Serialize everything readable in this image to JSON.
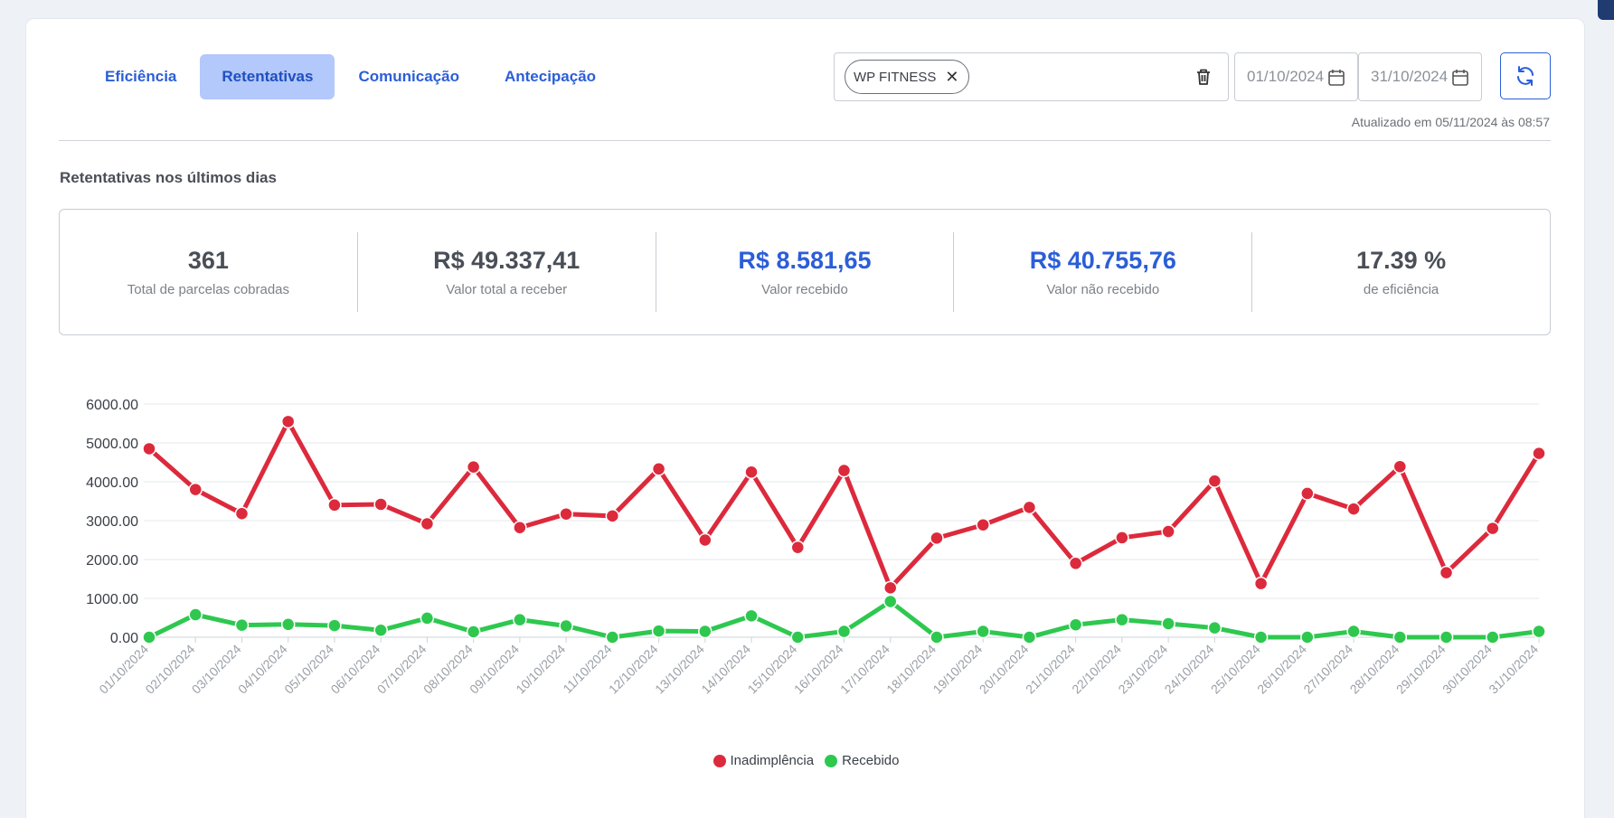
{
  "tabs": [
    {
      "label": "Eficiência",
      "active": false
    },
    {
      "label": "Retentativas",
      "active": true
    },
    {
      "label": "Comunicação",
      "active": false
    },
    {
      "label": "Antecipação",
      "active": false
    }
  ],
  "filter": {
    "chip_label": "WP FITNESS"
  },
  "dates": {
    "start": "01/10/2024",
    "end": "31/10/2024"
  },
  "updated_text": "Atualizado em 05/11/2024 às 08:57",
  "section_title": "Retentativas nos últimos dias",
  "stats": [
    {
      "value": "361",
      "label": "Total de parcelas cobradas",
      "highlight": false
    },
    {
      "value": "R$ 49.337,41",
      "label": "Valor total a receber",
      "highlight": false
    },
    {
      "value": "R$ 8.581,65",
      "label": "Valor recebido",
      "highlight": true
    },
    {
      "value": "R$ 40.755,76",
      "label": "Valor não recebido",
      "highlight": true
    },
    {
      "value": "17.39 %",
      "label": "de eficiência",
      "highlight": false
    }
  ],
  "colors": {
    "accent": "#2b5ed8",
    "series_red": "#dc2a3c",
    "series_green": "#2ec84f"
  },
  "chart_data": {
    "type": "line",
    "x": [
      "01/10/2024",
      "02/10/2024",
      "03/10/2024",
      "04/10/2024",
      "05/10/2024",
      "06/10/2024",
      "07/10/2024",
      "08/10/2024",
      "09/10/2024",
      "10/10/2024",
      "11/10/2024",
      "12/10/2024",
      "13/10/2024",
      "14/10/2024",
      "15/10/2024",
      "16/10/2024",
      "17/10/2024",
      "18/10/2024",
      "19/10/2024",
      "20/10/2024",
      "21/10/2024",
      "22/10/2024",
      "23/10/2024",
      "24/10/2024",
      "25/10/2024",
      "26/10/2024",
      "27/10/2024",
      "28/10/2024",
      "29/10/2024",
      "30/10/2024",
      "31/10/2024"
    ],
    "series": [
      {
        "name": "Inadimplência",
        "color": "#dc2a3c",
        "values": [
          4850,
          3800,
          3180,
          5550,
          3400,
          3420,
          2920,
          4380,
          2820,
          3170,
          3120,
          4330,
          2500,
          4250,
          2310,
          4290,
          1270,
          2550,
          2890,
          3340,
          1900,
          2560,
          2720,
          4020,
          1380,
          3700,
          3300,
          4390,
          1660,
          2800,
          4730
        ]
      },
      {
        "name": "Recebido",
        "color": "#2ec84f",
        "values": [
          0,
          580,
          310,
          330,
          300,
          180,
          490,
          140,
          450,
          290,
          0,
          160,
          150,
          550,
          0,
          150,
          920,
          0,
          150,
          0,
          320,
          450,
          350,
          240,
          0,
          0,
          150,
          0,
          0,
          0,
          150
        ]
      }
    ],
    "y_ticks": [
      "0.00",
      "1000.00",
      "2000.00",
      "3000.00",
      "4000.00",
      "5000.00",
      "6000.00"
    ],
    "ylim": [
      0,
      6000
    ],
    "grid": true,
    "legend": "bottom-center"
  }
}
